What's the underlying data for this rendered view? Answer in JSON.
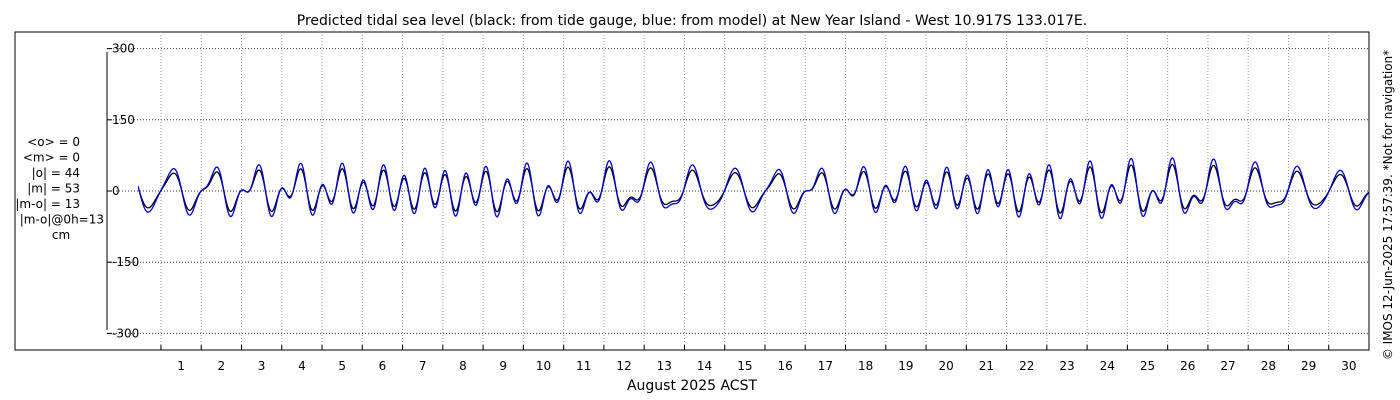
{
  "chart_data": {
    "type": "line",
    "title": "Predicted tidal sea level (black: from tide gauge, blue: from model) at New Year Island - West 10.917S 133.017E.",
    "xlabel": "August 2025 ACST",
    "ylabel": "",
    "x_tick_labels": [
      "1",
      "2",
      "3",
      "4",
      "5",
      "6",
      "7",
      "8",
      "9",
      "10",
      "11",
      "12",
      "13",
      "14",
      "15",
      "16",
      "17",
      "18",
      "19",
      "20",
      "21",
      "22",
      "23",
      "24",
      "25",
      "26",
      "27",
      "28",
      "29",
      "30"
    ],
    "y_ticks": [
      300,
      150,
      0,
      -150,
      -300
    ],
    "y_tick_labels": [
      "300",
      "150",
      "0",
      "-150",
      "-300"
    ],
    "xlim": [
      0.43,
      31.0
    ],
    "ylim": [
      -335,
      335
    ],
    "grid": true,
    "stats": [
      "<o> = 0",
      "<m> = 0",
      "|o| = 44",
      "|m| = 53",
      "|m-o| = 13",
      "|m-o|@0h=13",
      "cm"
    ],
    "side_note": "© IMOS 12-Jun-2025 17:57:39. *Not for navigation*",
    "series": [
      {
        "color": "#000000",
        "amp_scale": 0.8,
        "components": [
          {
            "amp": 25,
            "period_hours": 12.4206,
            "phase_deg": 90
          },
          {
            "amp": 18,
            "period_hours": 12.0,
            "phase_deg": -90
          },
          {
            "amp": 26,
            "period_hours": 25.8193,
            "phase_deg": 80
          },
          {
            "amp": 18,
            "period_hours": 23.9345,
            "phase_deg": 70
          }
        ]
      },
      {
        "color": "#0000cc",
        "amp_scale": 1.0,
        "components": [
          {
            "amp": 25,
            "period_hours": 12.4206,
            "phase_deg": 90
          },
          {
            "amp": 18,
            "period_hours": 12.0,
            "phase_deg": -90
          },
          {
            "amp": 26,
            "period_hours": 25.8193,
            "phase_deg": 80
          },
          {
            "amp": 18,
            "period_hours": 23.9345,
            "phase_deg": 70
          }
        ]
      }
    ]
  }
}
